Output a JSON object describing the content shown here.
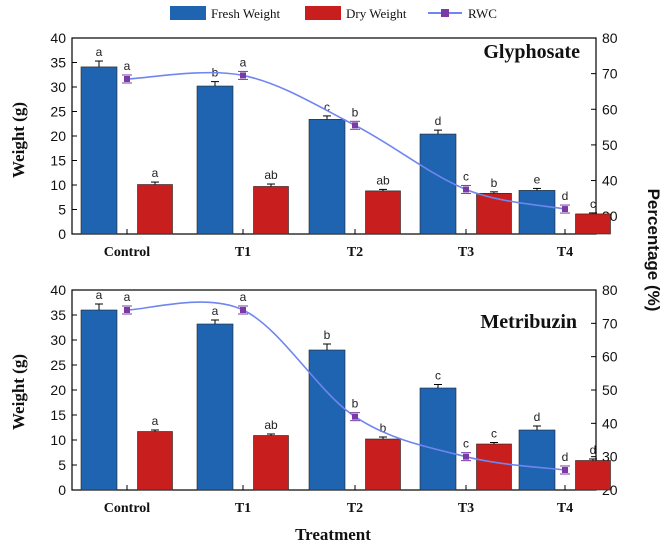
{
  "legend": {
    "fresh": "Fresh Weight",
    "dry": "Dry Weight",
    "rwc": "RWC"
  },
  "colors": {
    "fresh": "#1f64b0",
    "dry": "#c81e1e",
    "rwc": "#6f86f0",
    "rwc_marker": "#7a3aa6"
  },
  "xlabel": "Treatment",
  "chart_data": [
    {
      "type": "bar",
      "title": "Glyphosate",
      "categories": [
        "Control",
        "T1",
        "T2",
        "T3",
        "T4"
      ],
      "ylabel": "Weight (g)",
      "ylim": [
        0,
        40
      ],
      "yticks": [
        0,
        5,
        10,
        15,
        20,
        25,
        30,
        35,
        40
      ],
      "y2label": "Percentage (%)",
      "y2lim": [
        25,
        80
      ],
      "y2ticks": [
        30,
        40,
        50,
        60,
        70,
        80
      ],
      "series": [
        {
          "name": "Fresh Weight",
          "values": [
            34.1,
            30.2,
            23.4,
            20.4,
            8.9
          ],
          "errors": [
            1.2,
            0.9,
            0.7,
            0.8,
            0.4
          ],
          "letters": [
            "a",
            "b",
            "c",
            "d",
            "e"
          ]
        },
        {
          "name": "Dry Weight",
          "values": [
            10.1,
            9.7,
            8.8,
            8.3,
            4.1
          ],
          "errors": [
            0.5,
            0.5,
            0.3,
            0.3,
            0.2
          ],
          "letters": [
            "a",
            "ab",
            "ab",
            "b",
            "c"
          ]
        },
        {
          "name": "RWC",
          "axis": "right",
          "values": [
            68.5,
            69.5,
            55.5,
            37.5,
            32.0
          ],
          "letters": [
            "a",
            "a",
            "b",
            "c",
            "d"
          ]
        }
      ]
    },
    {
      "type": "bar",
      "title": "Metribuzin",
      "categories": [
        "Control",
        "T1",
        "T2",
        "T3",
        "T4"
      ],
      "ylabel": "Weight (g)",
      "ylim": [
        0,
        40
      ],
      "yticks": [
        0,
        5,
        10,
        15,
        20,
        25,
        30,
        35,
        40
      ],
      "y2label": "Percentage (%)",
      "y2lim": [
        20,
        80
      ],
      "y2ticks": [
        20,
        30,
        40,
        50,
        60,
        70,
        80
      ],
      "series": [
        {
          "name": "Fresh Weight",
          "values": [
            36.0,
            33.2,
            28.0,
            20.4,
            12.0
          ],
          "errors": [
            1.2,
            0.8,
            1.2,
            0.7,
            0.8
          ],
          "letters": [
            "a",
            "a",
            "b",
            "c",
            "d"
          ]
        },
        {
          "name": "Dry Weight",
          "values": [
            11.7,
            10.9,
            10.2,
            9.2,
            5.9
          ],
          "errors": [
            0.3,
            0.3,
            0.4,
            0.3,
            0.3
          ],
          "letters": [
            "a",
            "ab",
            "b",
            "c",
            "d"
          ]
        },
        {
          "name": "RWC",
          "axis": "right",
          "values": [
            74.0,
            74.0,
            42.0,
            30.0,
            26.0
          ],
          "letters": [
            "a",
            "a",
            "b",
            "c",
            "d"
          ]
        }
      ]
    }
  ]
}
